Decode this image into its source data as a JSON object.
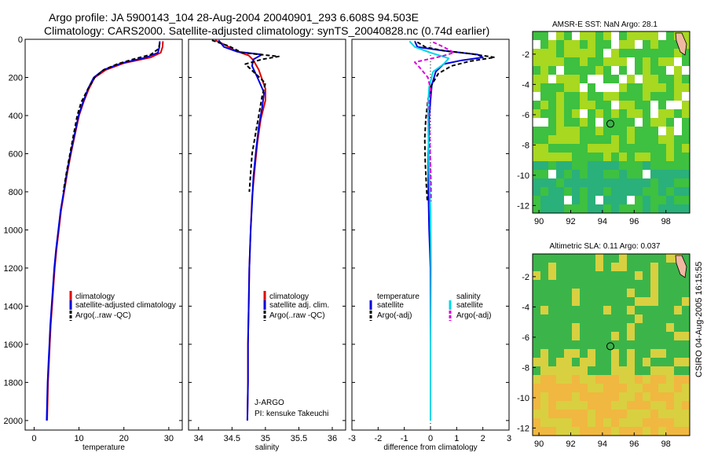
{
  "header": {
    "line1": "Argo profile: JA 5900143_104 28-Aug-2004 20040901_293 6.608S 94.503E",
    "line2": "Climatology: CARS2000. Satellite-adjusted climatology: synTS_20040828.nc (0.74d earlier)"
  },
  "side_stamp": "CSIRO 04-Aug-2005 16:15:55",
  "chart_data": [
    {
      "id": "temperature",
      "type": "line",
      "xlabel": "temperature",
      "xlim": [
        -2,
        33
      ],
      "ylim": [
        2050,
        0
      ],
      "xticks": [
        0,
        10,
        20,
        30
      ],
      "yticks": [
        0,
        200,
        400,
        600,
        800,
        1000,
        1200,
        1400,
        1600,
        1800,
        2000
      ],
      "legend": [
        "climatology",
        "satellite-adjusted climatology",
        "Argo(..raw -QC)"
      ],
      "series": [
        {
          "name": "climatology",
          "color": "#e00000",
          "dash": "",
          "points": [
            [
              28.7,
              10
            ],
            [
              28.6,
              40
            ],
            [
              28.2,
              70
            ],
            [
              26,
              95
            ],
            [
              20,
              125
            ],
            [
              16,
              160
            ],
            [
              13.5,
              200
            ],
            [
              12.2,
              260
            ],
            [
              11,
              330
            ],
            [
              10,
              400
            ],
            [
              9.1,
              500
            ],
            [
              8.2,
              600
            ],
            [
              7.4,
              700
            ],
            [
              6.7,
              800
            ],
            [
              6.0,
              900
            ],
            [
              5.5,
              1000
            ],
            [
              5.0,
              1100
            ],
            [
              4.6,
              1200
            ],
            [
              4.3,
              1300
            ],
            [
              4.0,
              1400
            ],
            [
              3.7,
              1500
            ],
            [
              3.5,
              1600
            ],
            [
              3.3,
              1700
            ],
            [
              3.1,
              1800
            ],
            [
              3.0,
              1900
            ],
            [
              2.9,
              2000
            ]
          ]
        },
        {
          "name": "satellite-adjusted climatology",
          "color": "#0000dd",
          "dash": "",
          "points": [
            [
              28.0,
              10
            ],
            [
              27.9,
              40
            ],
            [
              27.6,
              70
            ],
            [
              25,
              95
            ],
            [
              19.5,
              125
            ],
            [
              15.5,
              160
            ],
            [
              13.3,
              200
            ],
            [
              12.0,
              260
            ],
            [
              10.9,
              330
            ],
            [
              9.9,
              400
            ],
            [
              9.0,
              500
            ],
            [
              8.1,
              600
            ],
            [
              7.3,
              700
            ],
            [
              6.6,
              800
            ],
            [
              5.9,
              900
            ],
            [
              5.4,
              1000
            ],
            [
              4.9,
              1100
            ],
            [
              4.5,
              1200
            ],
            [
              4.2,
              1300
            ],
            [
              3.9,
              1400
            ],
            [
              3.6,
              1500
            ],
            [
              3.4,
              1600
            ],
            [
              3.2,
              1700
            ],
            [
              3.0,
              1800
            ],
            [
              2.9,
              1900
            ],
            [
              2.8,
              2000
            ]
          ]
        },
        {
          "name": "Argo(..raw -QC)",
          "color": "#000000",
          "dash": "5,3",
          "points": [
            [
              28.0,
              20
            ],
            [
              27.7,
              50
            ],
            [
              26,
              80
            ],
            [
              22,
              105
            ],
            [
              18.5,
              130
            ],
            [
              15.5,
              160
            ],
            [
              13.5,
              200
            ],
            [
              12.0,
              260
            ],
            [
              10.5,
              330
            ],
            [
              9.6,
              400
            ],
            [
              8.8,
              500
            ],
            [
              8.0,
              600
            ],
            [
              7.2,
              700
            ],
            [
              6.5,
              800
            ]
          ]
        }
      ]
    },
    {
      "id": "salinity",
      "type": "line",
      "xlabel": "salinity",
      "xlim": [
        33.85,
        36.2
      ],
      "ylim": [
        2050,
        0
      ],
      "xticks": [
        34,
        34.5,
        35,
        35.5,
        36
      ],
      "yticks": [
        0,
        200,
        400,
        600,
        800,
        1000,
        1200,
        1400,
        1600,
        1800,
        2000
      ],
      "legend": [
        "climatology",
        "satellite adj. clim.",
        "Argo(..raw -QC)"
      ],
      "annotations": [
        "J-ARGO",
        "PI: kensuke Takeuchi"
      ],
      "series": [
        {
          "name": "climatology",
          "color": "#e00000",
          "dash": "",
          "points": [
            [
              34.25,
              5
            ],
            [
              34.4,
              30
            ],
            [
              34.55,
              60
            ],
            [
              34.75,
              85
            ],
            [
              34.82,
              110
            ],
            [
              34.9,
              160
            ],
            [
              35.0,
              260
            ],
            [
              35.0,
              320
            ],
            [
              34.93,
              420
            ],
            [
              34.88,
              540
            ],
            [
              34.84,
              680
            ],
            [
              34.8,
              830
            ],
            [
              34.78,
              1000
            ],
            [
              34.76,
              1200
            ],
            [
              34.75,
              1400
            ],
            [
              34.74,
              1600
            ],
            [
              34.74,
              1800
            ],
            [
              34.73,
              2000
            ]
          ]
        },
        {
          "name": "satellite adj. clim.",
          "color": "#0000dd",
          "dash": "",
          "points": [
            [
              34.3,
              5
            ],
            [
              34.38,
              40
            ],
            [
              34.58,
              65
            ],
            [
              34.95,
              80
            ],
            [
              34.82,
              105
            ],
            [
              34.8,
              140
            ],
            [
              34.88,
              200
            ],
            [
              34.98,
              280
            ],
            [
              34.95,
              360
            ],
            [
              34.9,
              460
            ],
            [
              34.86,
              580
            ],
            [
              34.82,
              720
            ],
            [
              34.8,
              860
            ],
            [
              34.78,
              1000
            ],
            [
              34.76,
              1200
            ],
            [
              34.75,
              1400
            ],
            [
              34.74,
              1600
            ],
            [
              34.74,
              1800
            ],
            [
              34.73,
              2000
            ]
          ]
        },
        {
          "name": "Argo(..raw -QC)",
          "color": "#000000",
          "dash": "5,3",
          "points": [
            [
              34.2,
              5
            ],
            [
              34.45,
              35
            ],
            [
              34.65,
              70
            ],
            [
              35.2,
              90
            ],
            [
              34.95,
              105
            ],
            [
              34.7,
              130
            ],
            [
              34.85,
              180
            ],
            [
              35.0,
              230
            ],
            [
              34.95,
              300
            ],
            [
              34.9,
              400
            ],
            [
              34.85,
              500
            ],
            [
              34.8,
              600
            ],
            [
              34.78,
              700
            ],
            [
              34.76,
              800
            ]
          ]
        }
      ]
    },
    {
      "id": "difference",
      "type": "line",
      "xlabel": "difference from climatology",
      "xlim": [
        -3,
        3
      ],
      "ylim": [
        2050,
        0
      ],
      "xticks": [
        -3,
        -2,
        -1,
        0,
        1,
        2,
        3
      ],
      "yticks": [
        0,
        200,
        400,
        600,
        800,
        1000,
        1200,
        1400,
        1600,
        1800,
        2000
      ],
      "legend_left_title": "temperature",
      "legend_right_title": "salinity",
      "legend": [
        "satellite",
        "Argo(-adj)",
        "satellite",
        "Argo(-adj)"
      ],
      "series": [
        {
          "name": "temperature satellite",
          "color": "#0000dd",
          "dash": "",
          "points": [
            [
              -0.6,
              10
            ],
            [
              -0.5,
              40
            ],
            [
              0.5,
              60
            ],
            [
              1.8,
              80
            ],
            [
              2.0,
              95
            ],
            [
              1.2,
              110
            ],
            [
              0.5,
              130
            ],
            [
              0.2,
              170
            ],
            [
              0.05,
              240
            ],
            [
              0.0,
              320
            ],
            [
              -0.05,
              420
            ],
            [
              -0.08,
              600
            ],
            [
              -0.08,
              800
            ],
            [
              -0.05,
              1000
            ],
            [
              0.0,
              1200
            ],
            [
              0.0,
              1600
            ],
            [
              0.0,
              2000
            ]
          ]
        },
        {
          "name": "temperature Argo(-adj)",
          "color": "#000000",
          "dash": "5,3",
          "points": [
            [
              -0.5,
              15
            ],
            [
              -0.2,
              40
            ],
            [
              0.5,
              60
            ],
            [
              1.5,
              75
            ],
            [
              2.45,
              95
            ],
            [
              1.5,
              115
            ],
            [
              0.8,
              140
            ],
            [
              0.3,
              180
            ],
            [
              0.0,
              250
            ],
            [
              -0.1,
              320
            ],
            [
              -0.18,
              420
            ],
            [
              -0.22,
              520
            ],
            [
              -0.2,
              640
            ],
            [
              -0.16,
              760
            ],
            [
              -0.12,
              850
            ]
          ]
        },
        {
          "name": "salinity satellite",
          "color": "#00d8e8",
          "dash": "",
          "points": [
            [
              -0.8,
              10
            ],
            [
              -0.6,
              40
            ],
            [
              0.0,
              70
            ],
            [
              0.7,
              100
            ],
            [
              0.5,
              130
            ],
            [
              0.1,
              170
            ],
            [
              -0.05,
              250
            ],
            [
              -0.1,
              350
            ],
            [
              -0.08,
              500
            ],
            [
              -0.05,
              700
            ],
            [
              0.0,
              900
            ],
            [
              0.02,
              1200
            ],
            [
              0.0,
              1600
            ],
            [
              0.0,
              2000
            ]
          ]
        },
        {
          "name": "salinity Argo(-adj)",
          "color": "#dd00dd",
          "dash": "5,3",
          "points": [
            [
              0.1,
              15
            ],
            [
              0.5,
              40
            ],
            [
              0.9,
              70
            ],
            [
              0.4,
              90
            ],
            [
              -0.6,
              120
            ],
            [
              -0.4,
              150
            ],
            [
              -0.1,
              200
            ],
            [
              0.0,
              260
            ],
            [
              -0.05,
              340
            ],
            [
              -0.04,
              450
            ],
            [
              -0.02,
              560
            ],
            [
              0.0,
              660
            ],
            [
              0.02,
              760
            ],
            [
              0.02,
              850
            ]
          ]
        }
      ]
    }
  ],
  "maps": [
    {
      "id": "sst",
      "title": "AMSR-E SST: NaN Argo: 28.1",
      "xticks": [
        90,
        92,
        94,
        96,
        98
      ],
      "yticks": [
        -2,
        -4,
        -6,
        -8,
        -10,
        -12
      ],
      "xlim": [
        89.6,
        99.5
      ],
      "ylim": [
        -0.5,
        -12.5
      ],
      "marker": [
        94.5,
        -6.6
      ],
      "colors": {
        "field_a": "#3ec040",
        "field_b": "#a8d820",
        "field_c": "#2ab07a",
        "missing": "#ffffff"
      }
    },
    {
      "id": "sla",
      "title": "Altimetric SLA: 0.11 Argo: 0.037",
      "xticks": [
        90,
        92,
        94,
        96,
        98
      ],
      "yticks": [
        -2,
        -4,
        -6,
        -8,
        -10,
        -12
      ],
      "xlim": [
        89.6,
        99.5
      ],
      "ylim": [
        -0.5,
        -12.5
      ],
      "marker": [
        94.5,
        -6.6
      ],
      "colors": {
        "field_a": "#3bb54a",
        "field_b": "#d8d040",
        "field_c": "#f0b840",
        "missing": "#ffffff"
      }
    }
  ]
}
